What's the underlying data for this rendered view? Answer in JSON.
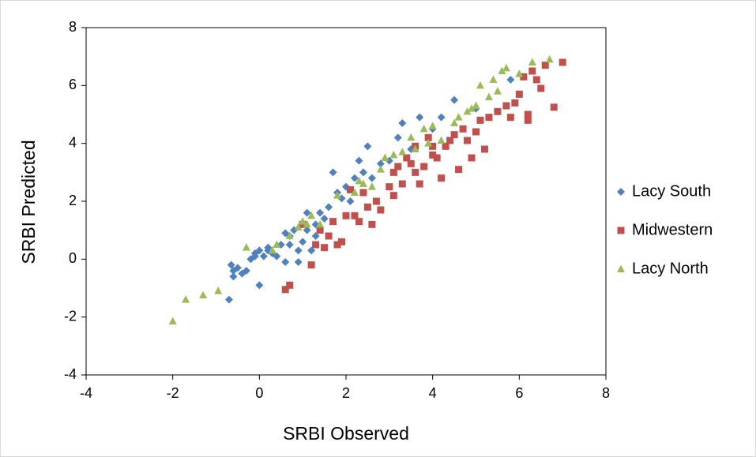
{
  "chart_data": {
    "type": "scatter",
    "x_label": "SRBI Observed",
    "y_label": "SRBI Predicted",
    "xlim": [
      -4,
      8
    ],
    "ylim": [
      -4,
      8
    ],
    "xticks": [
      -4,
      -2,
      0,
      2,
      4,
      6,
      8
    ],
    "yticks": [
      -4,
      -2,
      0,
      2,
      4,
      6,
      8
    ],
    "legend": "right",
    "series": [
      {
        "name": "Lacy South",
        "color": "#4f81bd",
        "marker": "diamond",
        "x": [
          -0.7,
          -0.6,
          -0.65,
          -0.6,
          -0.5,
          -0.4,
          -0.3,
          -0.2,
          -0.1,
          0,
          0,
          0.1,
          0.2,
          0.3,
          0.5,
          0.6,
          0.7,
          0.8,
          0.9,
          1.0,
          1.1,
          1.2,
          1.3,
          1.4,
          1.5,
          1.6,
          1.7,
          1.8,
          1.9,
          2.0,
          2.1,
          2.2,
          2.3,
          2.4,
          2.5,
          2.6,
          2.8,
          3.0,
          3.2,
          3.3,
          3.5,
          3.7,
          4.0,
          4.2,
          4.5,
          5.0,
          5.8,
          0.4,
          0.6,
          0.9,
          1.3,
          1.1,
          0.2,
          -0.1,
          0.7
        ],
        "values": [
          -1.4,
          -0.4,
          -0.2,
          -0.6,
          -0.3,
          -0.5,
          -0.4,
          0,
          0.2,
          -0.9,
          0.3,
          0.1,
          0.4,
          0.2,
          0.5,
          0.9,
          0.8,
          1.0,
          0.3,
          0.6,
          1.0,
          0.3,
          0.8,
          1.6,
          1.4,
          1.8,
          3.0,
          2.3,
          2.1,
          2.5,
          2.0,
          2.8,
          3.4,
          3.0,
          3.9,
          2.8,
          3.3,
          3.4,
          4.2,
          4.7,
          3.8,
          4.9,
          4.5,
          4.9,
          5.5,
          5.2,
          6.2,
          0.1,
          -0.1,
          -0.1,
          1.2,
          1.6,
          0.3,
          0.1,
          0.5
        ]
      },
      {
        "name": "Midwestern",
        "color": "#c0504d",
        "marker": "square",
        "x": [
          0.6,
          0.7,
          1.2,
          1.3,
          1.5,
          1.6,
          1.7,
          1.8,
          1.9,
          2.0,
          2.1,
          2.2,
          2.3,
          2.5,
          2.6,
          2.7,
          2.8,
          3.0,
          3.1,
          3.2,
          3.3,
          3.4,
          3.5,
          3.6,
          3.7,
          3.8,
          3.9,
          4.0,
          4.1,
          4.2,
          4.3,
          4.4,
          4.5,
          4.6,
          4.7,
          4.8,
          4.9,
          5.0,
          5.1,
          5.2,
          5.3,
          5.5,
          5.7,
          5.8,
          5.9,
          6.0,
          6.1,
          6.2,
          6.3,
          6.4,
          6.5,
          6.6,
          6.8,
          7.0,
          6.2,
          1.4,
          2.4,
          3.1,
          3.6,
          4.0,
          1.0
        ],
        "values": [
          -1.05,
          -0.9,
          -0.2,
          0.5,
          0.4,
          0.8,
          1.3,
          0.5,
          0.6,
          1.5,
          2.4,
          1.5,
          1.3,
          1.8,
          1.2,
          2.0,
          1.7,
          2.5,
          3.0,
          3.2,
          2.6,
          3.5,
          3.3,
          3.9,
          2.6,
          3.2,
          4.2,
          3.6,
          3.5,
          2.8,
          3.9,
          4.1,
          4.3,
          3.1,
          4.5,
          4.1,
          3.5,
          4.4,
          4.8,
          3.8,
          4.9,
          5.1,
          5.3,
          4.9,
          5.4,
          5.7,
          6.3,
          5.0,
          6.5,
          6.2,
          5.9,
          6.7,
          5.25,
          6.8,
          4.8,
          1.0,
          2.3,
          2.2,
          3.0,
          3.9,
          1.2
        ]
      },
      {
        "name": "Lacy North",
        "color": "#9bbb59",
        "marker": "triangle",
        "x": [
          -2.0,
          -1.7,
          -1.3,
          -0.95,
          -0.3,
          0.3,
          0.4,
          0.7,
          0.9,
          1.0,
          1.2,
          1.4,
          1.8,
          2.2,
          2.3,
          2.4,
          2.6,
          2.8,
          2.9,
          3.1,
          3.3,
          3.5,
          3.6,
          3.8,
          4.0,
          4.2,
          4.5,
          4.6,
          4.8,
          5.0,
          5.1,
          5.3,
          5.4,
          5.5,
          5.6,
          5.7,
          6.0,
          6.3,
          6.7,
          1.1,
          3.9,
          4.9
        ],
        "values": [
          -2.15,
          -1.4,
          -1.25,
          -1.1,
          0.4,
          0.3,
          0.5,
          0.8,
          1.1,
          1.3,
          1.5,
          1.2,
          2.2,
          2.3,
          2.7,
          2.6,
          2.5,
          3.1,
          3.5,
          3.6,
          3.7,
          4.2,
          3.8,
          4.5,
          4.6,
          4.1,
          4.7,
          4.9,
          5.1,
          5.3,
          6.0,
          5.6,
          6.2,
          5.8,
          6.5,
          6.6,
          6.4,
          6.8,
          6.9,
          1.2,
          4.0,
          5.2
        ]
      }
    ]
  }
}
